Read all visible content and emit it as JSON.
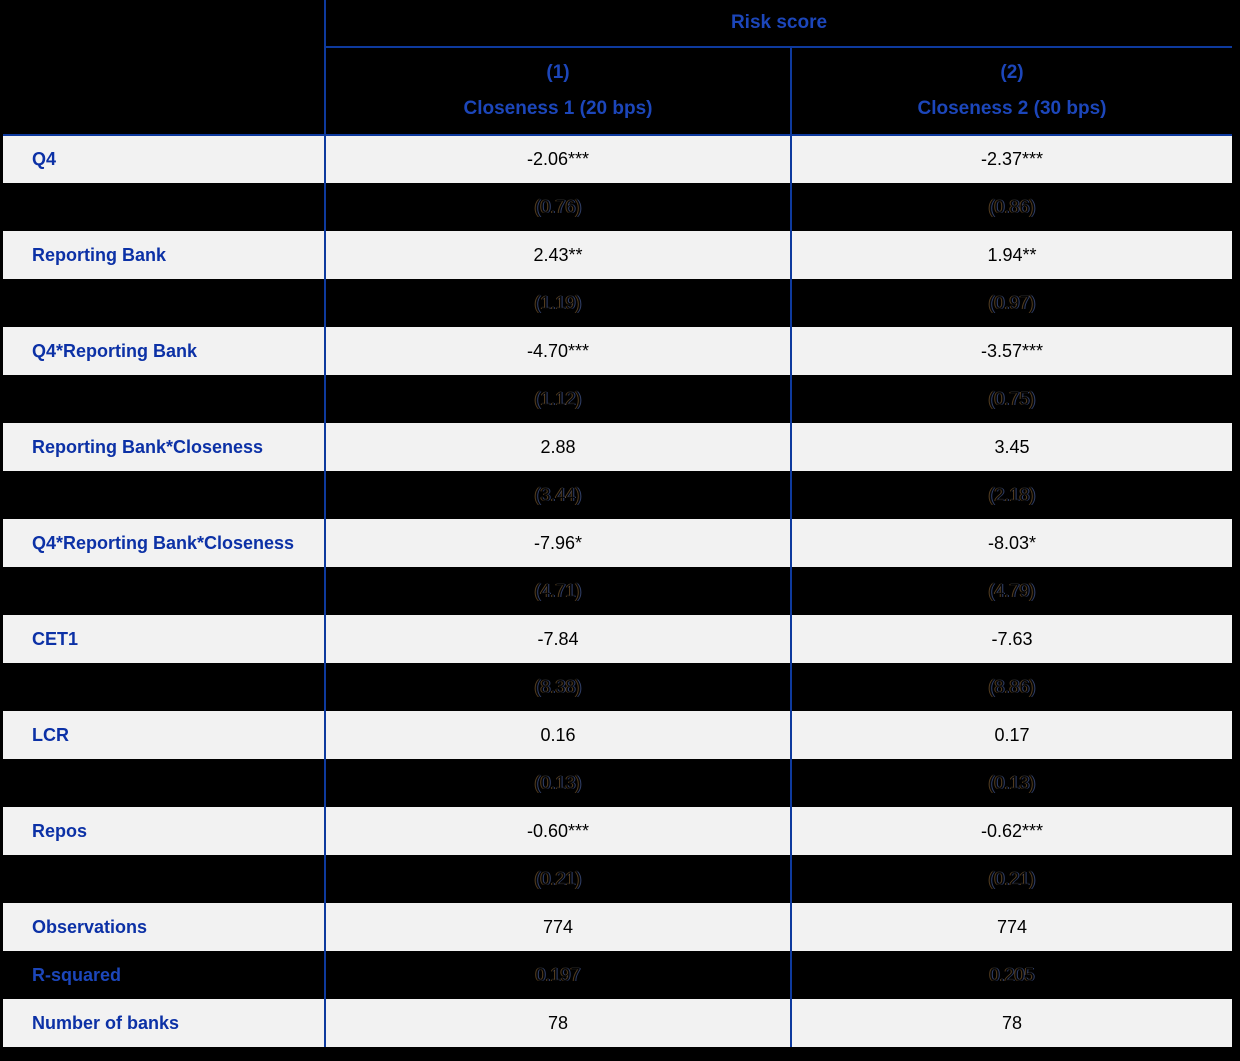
{
  "colors": {
    "background": "#000000",
    "light_row": "#f2f2f2",
    "grid_blue": "#0e3a9e",
    "label_blue": "#0c31a6",
    "header_blue": "#1c46ba",
    "value_black": "#000000"
  },
  "table": {
    "group_header": "Risk score",
    "columns": [
      {
        "number": "(1)",
        "label": "Closeness 1 (20 bps)"
      },
      {
        "number": "(2)",
        "label": "Closeness 2 (30 bps)"
      }
    ],
    "rows": [
      {
        "kind": "coef",
        "label": "Q4",
        "values": [
          "-2.06***",
          "-2.37***"
        ]
      },
      {
        "kind": "se",
        "label": "",
        "values": [
          "(0.76)",
          "(0.86)"
        ]
      },
      {
        "kind": "coef",
        "label": "Reporting Bank",
        "values": [
          "2.43**",
          "1.94**"
        ]
      },
      {
        "kind": "se",
        "label": "",
        "values": [
          "(1.19)",
          "(0.97)"
        ]
      },
      {
        "kind": "coef",
        "label": "Q4*Reporting Bank",
        "values": [
          "-4.70***",
          "-3.57***"
        ]
      },
      {
        "kind": "se",
        "label": "",
        "values": [
          "(1.12)",
          "(0.75)"
        ]
      },
      {
        "kind": "coef",
        "label": "Reporting Bank*Closeness",
        "values": [
          "2.88",
          "3.45"
        ]
      },
      {
        "kind": "se",
        "label": "",
        "values": [
          "(3.44)",
          "(2.18)"
        ]
      },
      {
        "kind": "coef",
        "label": "Q4*Reporting Bank*Closeness",
        "values": [
          "-7.96*",
          "-8.03*"
        ]
      },
      {
        "kind": "se",
        "label": "",
        "values": [
          "(4.71)",
          "(4.79)"
        ]
      },
      {
        "kind": "coef",
        "label": "CET1",
        "values": [
          "-7.84",
          "-7.63"
        ]
      },
      {
        "kind": "se",
        "label": "",
        "values": [
          "(8.38)",
          "(8.86)"
        ]
      },
      {
        "kind": "coef",
        "label": "LCR",
        "values": [
          "0.16",
          "0.17"
        ]
      },
      {
        "kind": "se",
        "label": "",
        "values": [
          "(0.13)",
          "(0.13)"
        ]
      },
      {
        "kind": "coef",
        "label": "Repos",
        "values": [
          "-0.60***",
          "-0.62***"
        ]
      },
      {
        "kind": "se",
        "label": "",
        "values": [
          "(0.21)",
          "(0.21)"
        ]
      },
      {
        "kind": "stat",
        "label": "Observations",
        "values": [
          "774",
          "774"
        ]
      },
      {
        "kind": "stat_dark",
        "label": "R-squared",
        "values": [
          "0.197",
          "0.205"
        ]
      },
      {
        "kind": "stat",
        "label": "Number of banks",
        "values": [
          "78",
          "78"
        ]
      }
    ]
  }
}
